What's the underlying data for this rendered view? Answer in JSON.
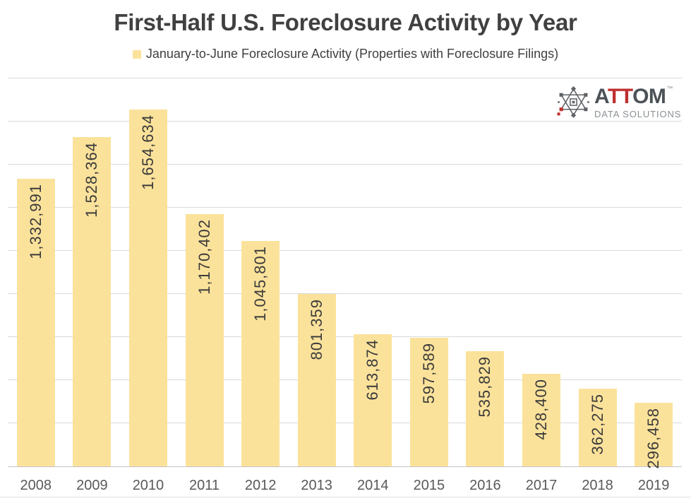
{
  "title": "First-Half U.S. Foreclosure Activity by Year",
  "legend": {
    "label": "January-to-June Foreclosure Activity (Properties with Foreclosure Filings)"
  },
  "logo": {
    "icon": "atom-network-icon",
    "brand_a": "A",
    "brand_tt": "TT",
    "brand_om": "OM",
    "trademark": "™",
    "subtitle": "DATA SOLUTIONS",
    "text_color": "#4C5257",
    "accent_color": "#C0302F",
    "subtitle_color": "#8B9094"
  },
  "chart_data": {
    "type": "bar",
    "title": "First-Half U.S. Foreclosure Activity by Year",
    "series_name": "January-to-June Foreclosure Activity (Properties with Foreclosure Filings)",
    "categories": [
      "2008",
      "2009",
      "2010",
      "2011",
      "2012",
      "2013",
      "2014",
      "2015",
      "2016",
      "2017",
      "2018",
      "2019"
    ],
    "values": [
      1332991,
      1528364,
      1654634,
      1170402,
      1045801,
      801359,
      613874,
      597589,
      535829,
      428400,
      362275,
      296458
    ],
    "data_labels": [
      "1,332,991",
      "1,528,364",
      "1,654,634",
      "1,170,402",
      "1,045,801",
      "801,359",
      "613,874",
      "597,589",
      "535,829",
      "428,400",
      "362,275",
      "296,458"
    ],
    "xlabel": "",
    "ylabel": "",
    "ylim": [
      0,
      1800000
    ],
    "gridline_step": 200000,
    "grid": true,
    "legend_position": "top",
    "y_axis_labels_shown": false,
    "bar_color": "#FBE29B",
    "label_color": "#3B3B3B",
    "label_rotation": "vertical-bottom-to-top",
    "label_position": "inside-top"
  },
  "colors": {
    "grid": "#D9D9D9",
    "axis": "#C4C4C4",
    "title": "#404040",
    "year_label": "#595959",
    "bottom_border": "#DEE1E4"
  }
}
